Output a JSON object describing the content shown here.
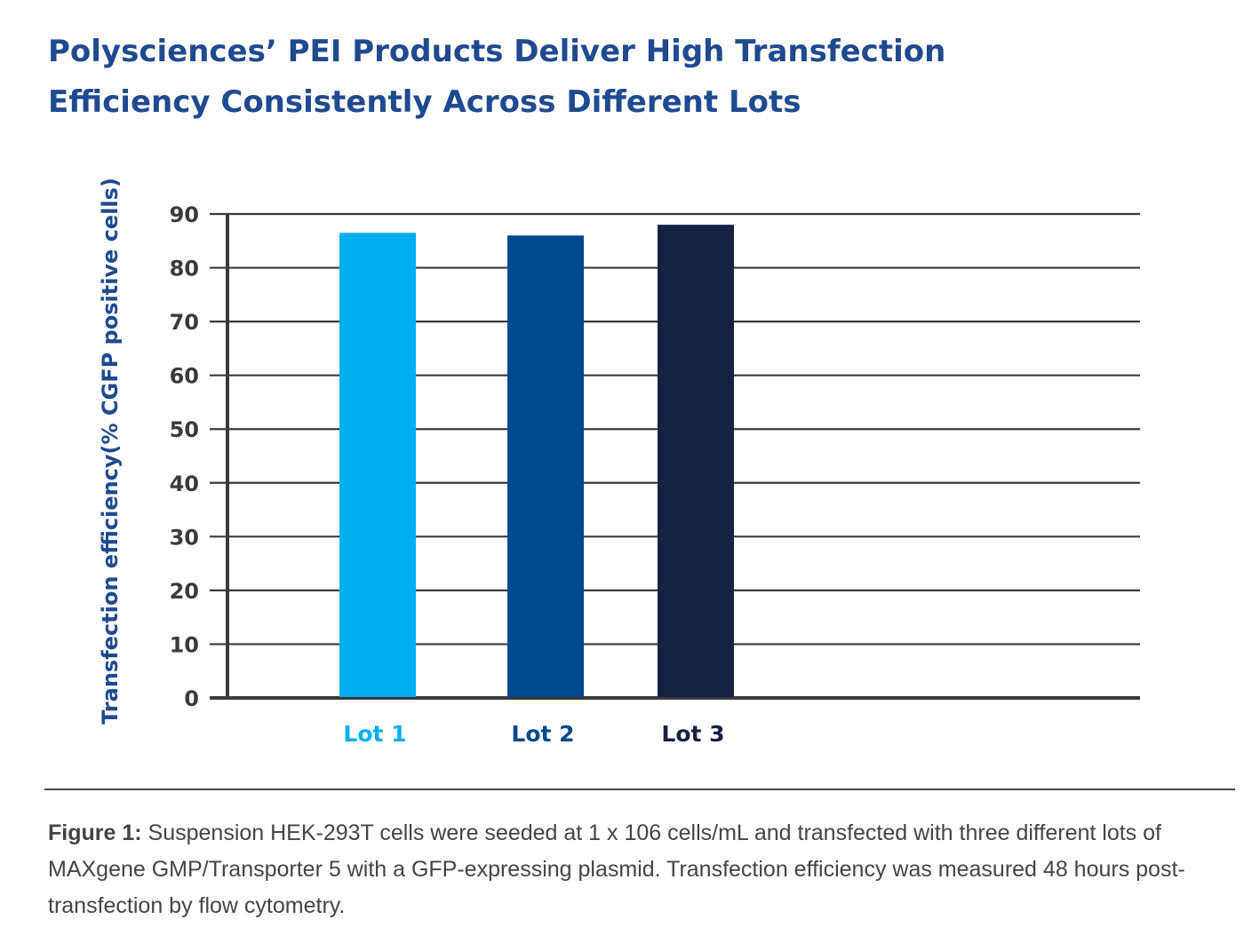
{
  "chart_data": {
    "type": "bar",
    "title_lines": [
      "Polysciences’ PEI Products Deliver High Transfection",
      "Efficiency Consistently Across Different Lots"
    ],
    "ylabel": "Transfection efficiency(% CGFP positive cells)",
    "xlabel": "",
    "categories": [
      "Lot 1",
      "Lot 2",
      "Lot 3"
    ],
    "values": [
      86.5,
      86,
      88
    ],
    "colors": [
      "#00aeef",
      "#00498e",
      "#172142"
    ],
    "ylim": [
      0,
      90
    ],
    "yticks": [
      0,
      10,
      20,
      30,
      40,
      50,
      60,
      70,
      80,
      90
    ],
    "grid": true,
    "legend": "none"
  },
  "caption": {
    "lead": "Figure 1:",
    "text": " Suspension HEK-293T cells were seeded at 1 x 106 cells/mL  and transfected with three different lots of MAXgene GMP/Transporter 5 with a GFP-expressing plasmid. Transfection efficiency was measured  48 hours post-transfection by flow cytometry."
  }
}
